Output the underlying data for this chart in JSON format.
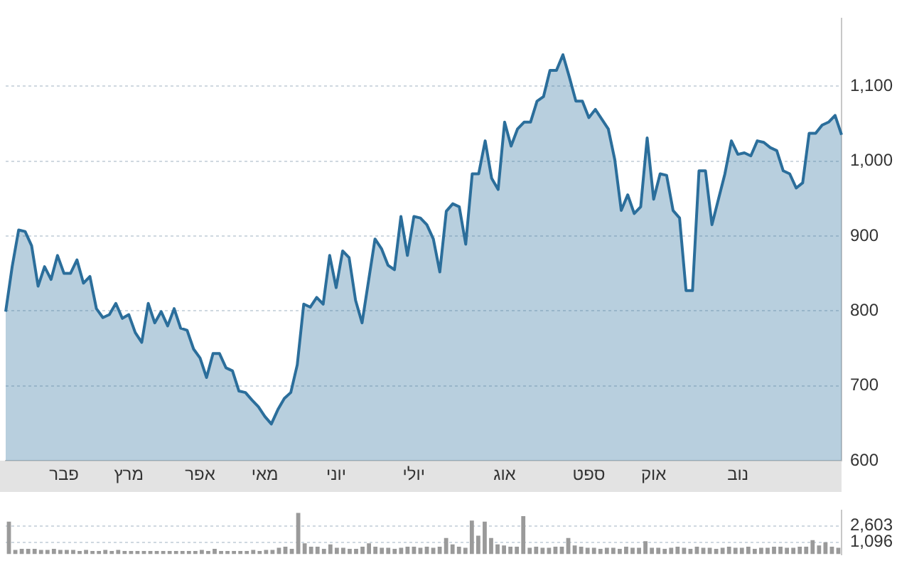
{
  "chart_data": [
    {
      "type": "area",
      "categories": [
        null,
        null,
        null,
        null,
        null,
        null,
        null,
        null,
        null,
        "פבר",
        null,
        null,
        null,
        null,
        null,
        null,
        null,
        null,
        null,
        "מרץ",
        null,
        null,
        null,
        null,
        null,
        null,
        null,
        null,
        null,
        null,
        "אפר",
        null,
        null,
        null,
        null,
        null,
        null,
        null,
        null,
        null,
        "מאי",
        null,
        null,
        null,
        null,
        null,
        null,
        null,
        null,
        null,
        null,
        "יוני",
        null,
        null,
        null,
        null,
        null,
        null,
        null,
        null,
        null,
        null,
        null,
        "יולי",
        null,
        null,
        null,
        null,
        null,
        null,
        null,
        null,
        null,
        null,
        null,
        null,
        null,
        "אוג",
        null,
        null,
        null,
        null,
        null,
        null,
        null,
        null,
        null,
        null,
        null,
        null,
        "ספט",
        null,
        null,
        null,
        null,
        null,
        null,
        null,
        null,
        null,
        "אוק",
        null,
        null,
        null,
        null,
        null,
        null,
        null,
        null,
        null,
        null,
        null,
        null,
        "נוב",
        null,
        null,
        null,
        null,
        null,
        null,
        null,
        null,
        null,
        null,
        null,
        null,
        null,
        null,
        null,
        null
      ],
      "series": [
        {
          "color": "#2b6e9b",
          "values": [
            799,
            859,
            908,
            906,
            887,
            833,
            859,
            842,
            874,
            850,
            850,
            868,
            837,
            846,
            803,
            791,
            795,
            810,
            790,
            795,
            771,
            758,
            810,
            784,
            799,
            780,
            803,
            777,
            774,
            749,
            737,
            711,
            743,
            743,
            724,
            720,
            693,
            691,
            681,
            672,
            659,
            649,
            668,
            683,
            691,
            728,
            809,
            805,
            818,
            809,
            874,
            831,
            880,
            871,
            814,
            784,
            840,
            896,
            883,
            861,
            855,
            926,
            874,
            926,
            924,
            915,
            896,
            852,
            933,
            943,
            939,
            889,
            983,
            983,
            1027,
            977,
            962,
            1052,
            1020,
            1043,
            1052,
            1052,
            1080,
            1086,
            1121,
            1121,
            1142,
            1112,
            1080,
            1080,
            1058,
            1069,
            1056,
            1043,
            1002,
            934,
            955,
            930,
            939,
            1031,
            949,
            983,
            981,
            934,
            924,
            827,
            827,
            987,
            987,
            915,
            949,
            983,
            1027,
            1009,
            1011,
            1007,
            1027,
            1025,
            1018,
            1014,
            987,
            983,
            964,
            971,
            1037,
            1037,
            1048,
            1052,
            1061,
            1035
          ]
        }
      ],
      "ylim": [
        600,
        1190
      ],
      "yticks": [
        600,
        700,
        800,
        900,
        {
          "value": 1000,
          "label": "1,000"
        },
        {
          "value": 1100,
          "label": "1,100"
        }
      ],
      "grid": "y",
      "legend": false
    },
    {
      "type": "bar",
      "categories": [
        null,
        null,
        null,
        null,
        null,
        null,
        null,
        null,
        null,
        null,
        null,
        null,
        null,
        null,
        null,
        null,
        null,
        null,
        null,
        null,
        null,
        null,
        null,
        null,
        null,
        null,
        null,
        null,
        null,
        null,
        null,
        null,
        null,
        null,
        null,
        null,
        null,
        null,
        null,
        null,
        null,
        null,
        null,
        null,
        null,
        null,
        null,
        null,
        null,
        null,
        null,
        null,
        null,
        null,
        null,
        null,
        null,
        null,
        null,
        null,
        null,
        null,
        null,
        null,
        null,
        null,
        null,
        null,
        null,
        null,
        null,
        null,
        null,
        null,
        null,
        null,
        null,
        null,
        null,
        null,
        null,
        null,
        null,
        null,
        null,
        null,
        null,
        null,
        null,
        null,
        null,
        null,
        null,
        null,
        null,
        null,
        null,
        null,
        null,
        null,
        null,
        null,
        null,
        null,
        null,
        null,
        null,
        null,
        null,
        null,
        null,
        null,
        null,
        null,
        null,
        null,
        null,
        null,
        null,
        null,
        null,
        null,
        null,
        null,
        null,
        null,
        null,
        null,
        null,
        null
      ],
      "series": [
        {
          "color": "#9a9a9a",
          "values": [
            3000,
            400,
            500,
            500,
            500,
            400,
            400,
            500,
            400,
            400,
            400,
            300,
            400,
            300,
            300,
            400,
            300,
            400,
            300,
            300,
            300,
            300,
            300,
            300,
            300,
            300,
            300,
            300,
            300,
            300,
            400,
            300,
            500,
            300,
            300,
            300,
            300,
            300,
            400,
            300,
            400,
            400,
            600,
            700,
            500,
            3800,
            1000,
            700,
            700,
            500,
            900,
            600,
            600,
            500,
            500,
            700,
            1000,
            700,
            600,
            600,
            500,
            600,
            700,
            700,
            600,
            700,
            600,
            700,
            1500,
            900,
            700,
            600,
            3100,
            1700,
            3000,
            1500,
            900,
            800,
            700,
            700,
            3500,
            600,
            700,
            600,
            600,
            700,
            700,
            1500,
            800,
            700,
            600,
            600,
            500,
            600,
            600,
            500,
            700,
            600,
            600,
            1200,
            600,
            600,
            500,
            600,
            700,
            600,
            500,
            700,
            600,
            600,
            500,
            600,
            700,
            600,
            600,
            700,
            500,
            600,
            600,
            700,
            700,
            600,
            600,
            700,
            700,
            1300,
            800,
            1100,
            700,
            600
          ]
        }
      ],
      "ylim": [
        0,
        4000
      ],
      "yticks": [
        {
          "value": 1096,
          "label": "1,096"
        },
        {
          "value": 2603,
          "label": "2,603"
        }
      ],
      "grid": "y",
      "legend": false,
      "tick_labels": "y"
    }
  ]
}
